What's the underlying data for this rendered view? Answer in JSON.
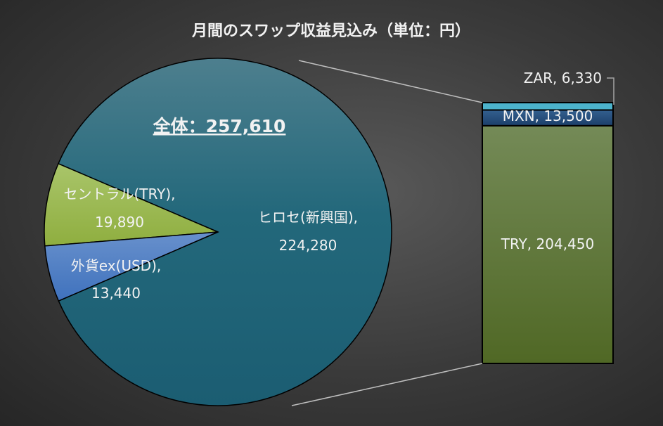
{
  "chart_data": {
    "type": "pie-of-bar",
    "title": "月間のスワップ収益見込み（単位：円）",
    "total_label": "全体：257,610",
    "pie": [
      {
        "label": "ヒロセ(新興国)",
        "value": 224280,
        "color": "#2a6a7c"
      },
      {
        "label": "セントラル(TRY)",
        "value": 19890,
        "color": "#9dbb52"
      },
      {
        "label": "外貨ex(USD)",
        "value": 13440,
        "color": "#4e7fc4"
      }
    ],
    "bar": [
      {
        "label": "TRY",
        "value": 204450,
        "color": "#667d45"
      },
      {
        "label": "MXN",
        "value": 13500,
        "color": "#254b7a"
      },
      {
        "label": "ZAR",
        "value": 6330,
        "color": "#4cb3cc"
      }
    ],
    "value_labels": {
      "hirose_name": "ヒロセ(新興国),",
      "hirose_value": "224,280",
      "central_name": "セントラル(TRY),",
      "central_value": "19,890",
      "gaitame_name": "外貨ex(USD),",
      "gaitame_value": "13,440",
      "try": "TRY, 204,450",
      "mxn": "MXN, 13,500",
      "zar": "ZAR, 6,330"
    }
  }
}
